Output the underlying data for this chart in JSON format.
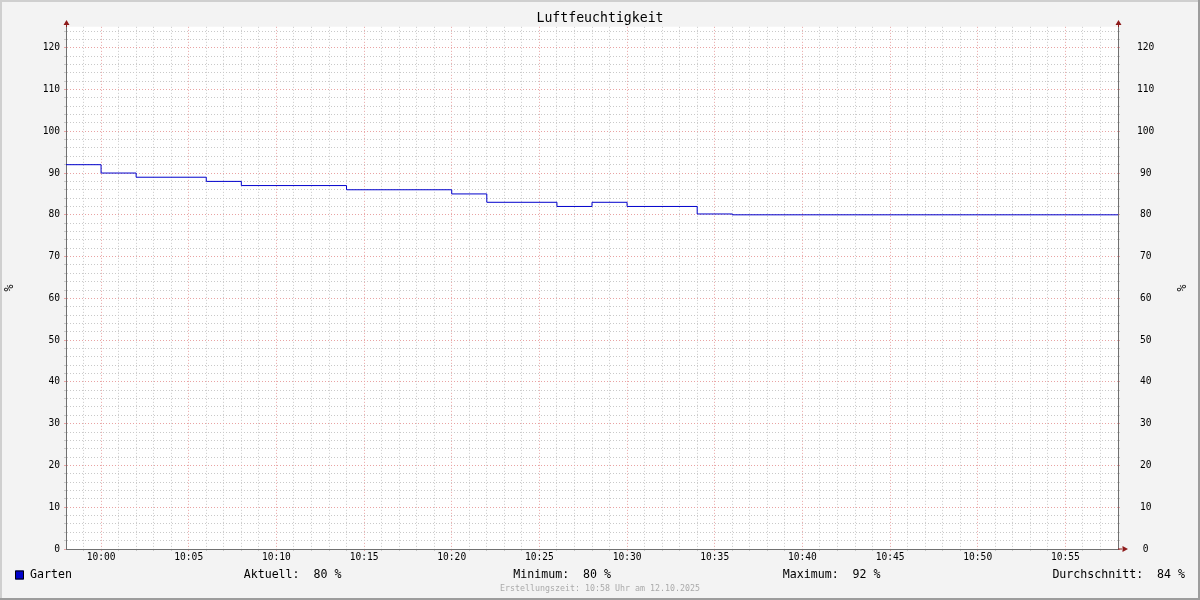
{
  "chart_data": {
    "type": "step",
    "title": "Luftfeuchtigkeit",
    "ylabel": "%",
    "y2label": "%",
    "x": [
      9.96667,
      10,
      10.03333,
      10.1,
      10.13333,
      10.23333,
      10.33333,
      10.36667,
      10.43333,
      10.46667,
      10.5,
      10.56667,
      10.6,
      10.96667
    ],
    "series": [
      {
        "name": "Garten",
        "color": "#0000cc",
        "values": [
          92,
          90,
          89,
          88,
          87,
          86,
          85,
          83,
          82,
          83,
          82,
          80.2,
          80,
          80
        ]
      }
    ],
    "xlim": [
      9.96667,
      10.96667
    ],
    "xticks": [
      {
        "value": 9.98333,
        "label": null
      },
      {
        "value": 10,
        "label": "10:00"
      },
      {
        "value": 10.01667,
        "label": null
      },
      {
        "value": 10.03333,
        "label": null
      },
      {
        "value": 10.05,
        "label": null
      },
      {
        "value": 10.06667,
        "label": null
      },
      {
        "value": 10.08333,
        "label": "10:05"
      },
      {
        "value": 10.1,
        "label": null
      },
      {
        "value": 10.11667,
        "label": null
      },
      {
        "value": 10.13333,
        "label": null
      },
      {
        "value": 10.15,
        "label": null
      },
      {
        "value": 10.16667,
        "label": "10:10"
      },
      {
        "value": 10.18333,
        "label": null
      },
      {
        "value": 10.2,
        "label": null
      },
      {
        "value": 10.21667,
        "label": null
      },
      {
        "value": 10.23333,
        "label": null
      },
      {
        "value": 10.25,
        "label": "10:15"
      },
      {
        "value": 10.26667,
        "label": null
      },
      {
        "value": 10.28333,
        "label": null
      },
      {
        "value": 10.3,
        "label": null
      },
      {
        "value": 10.31667,
        "label": null
      },
      {
        "value": 10.33333,
        "label": "10:20"
      },
      {
        "value": 10.35,
        "label": null
      },
      {
        "value": 10.36667,
        "label": null
      },
      {
        "value": 10.38333,
        "label": null
      },
      {
        "value": 10.4,
        "label": null
      },
      {
        "value": 10.41667,
        "label": "10:25"
      },
      {
        "value": 10.43333,
        "label": null
      },
      {
        "value": 10.45,
        "label": null
      },
      {
        "value": 10.46667,
        "label": null
      },
      {
        "value": 10.48333,
        "label": null
      },
      {
        "value": 10.5,
        "label": "10:30"
      },
      {
        "value": 10.51667,
        "label": null
      },
      {
        "value": 10.53333,
        "label": null
      },
      {
        "value": 10.55,
        "label": null
      },
      {
        "value": 10.56667,
        "label": null
      },
      {
        "value": 10.58333,
        "label": "10:35"
      },
      {
        "value": 10.6,
        "label": null
      },
      {
        "value": 10.61667,
        "label": null
      },
      {
        "value": 10.63333,
        "label": null
      },
      {
        "value": 10.65,
        "label": null
      },
      {
        "value": 10.66667,
        "label": "10:40"
      },
      {
        "value": 10.68333,
        "label": null
      },
      {
        "value": 10.7,
        "label": null
      },
      {
        "value": 10.71667,
        "label": null
      },
      {
        "value": 10.73333,
        "label": null
      },
      {
        "value": 10.75,
        "label": "10:45"
      },
      {
        "value": 10.76667,
        "label": null
      },
      {
        "value": 10.78333,
        "label": null
      },
      {
        "value": 10.8,
        "label": null
      },
      {
        "value": 10.81667,
        "label": null
      },
      {
        "value": 10.83333,
        "label": "10:50"
      },
      {
        "value": 10.85,
        "label": null
      },
      {
        "value": 10.86667,
        "label": null
      },
      {
        "value": 10.88333,
        "label": null
      },
      {
        "value": 10.9,
        "label": null
      },
      {
        "value": 10.91667,
        "label": "10:55"
      },
      {
        "value": 10.93333,
        "label": null
      },
      {
        "value": 10.95,
        "label": null
      }
    ],
    "ylim": [
      0,
      125
    ],
    "yticks": [
      0,
      {
        "value": 2,
        "label": null
      },
      {
        "value": 4,
        "label": null
      },
      {
        "value": 6,
        "label": null
      },
      {
        "value": 8,
        "label": null
      },
      10,
      {
        "value": 12,
        "label": null
      },
      {
        "value": 14,
        "label": null
      },
      {
        "value": 16,
        "label": null
      },
      {
        "value": 18,
        "label": null
      },
      20,
      {
        "value": 22,
        "label": null
      },
      {
        "value": 24,
        "label": null
      },
      {
        "value": 26,
        "label": null
      },
      {
        "value": 28,
        "label": null
      },
      30,
      {
        "value": 32,
        "label": null
      },
      {
        "value": 34,
        "label": null
      },
      {
        "value": 36,
        "label": null
      },
      {
        "value": 38,
        "label": null
      },
      40,
      {
        "value": 42,
        "label": null
      },
      {
        "value": 44,
        "label": null
      },
      {
        "value": 46,
        "label": null
      },
      {
        "value": 48,
        "label": null
      },
      50,
      {
        "value": 52,
        "label": null
      },
      {
        "value": 54,
        "label": null
      },
      {
        "value": 56,
        "label": null
      },
      {
        "value": 58,
        "label": null
      },
      60,
      {
        "value": 62,
        "label": null
      },
      {
        "value": 64,
        "label": null
      },
      {
        "value": 66,
        "label": null
      },
      {
        "value": 68,
        "label": null
      },
      70,
      {
        "value": 72,
        "label": null
      },
      {
        "value": 74,
        "label": null
      },
      {
        "value": 76,
        "label": null
      },
      {
        "value": 78,
        "label": null
      },
      80,
      {
        "value": 82,
        "label": null
      },
      {
        "value": 84,
        "label": null
      },
      {
        "value": 86,
        "label": null
      },
      {
        "value": 88,
        "label": null
      },
      90,
      {
        "value": 92,
        "label": null
      },
      {
        "value": 94,
        "label": null
      },
      {
        "value": 96,
        "label": null
      },
      {
        "value": 98,
        "label": null
      },
      100,
      {
        "value": 102,
        "label": null
      },
      {
        "value": 104,
        "label": null
      },
      {
        "value": 106,
        "label": null
      },
      {
        "value": 108,
        "label": null
      },
      110,
      {
        "value": 112,
        "label": null
      },
      {
        "value": 114,
        "label": null
      },
      {
        "value": 116,
        "label": null
      },
      {
        "value": 118,
        "label": null
      },
      120,
      {
        "value": 122,
        "label": null
      },
      {
        "value": 124,
        "label": null
      }
    ],
    "y2lim": [
      0,
      125
    ],
    "y2ticks": [
      0,
      {
        "value": 2,
        "label": null
      },
      {
        "value": 4,
        "label": null
      },
      {
        "value": 6,
        "label": null
      },
      {
        "value": 8,
        "label": null
      },
      10,
      {
        "value": 12,
        "label": null
      },
      {
        "value": 14,
        "label": null
      },
      {
        "value": 16,
        "label": null
      },
      {
        "value": 18,
        "label": null
      },
      20,
      {
        "value": 22,
        "label": null
      },
      {
        "value": 24,
        "label": null
      },
      {
        "value": 26,
        "label": null
      },
      {
        "value": 28,
        "label": null
      },
      30,
      {
        "value": 32,
        "label": null
      },
      {
        "value": 34,
        "label": null
      },
      {
        "value": 36,
        "label": null
      },
      {
        "value": 38,
        "label": null
      },
      40,
      {
        "value": 42,
        "label": null
      },
      {
        "value": 44,
        "label": null
      },
      {
        "value": 46,
        "label": null
      },
      {
        "value": 48,
        "label": null
      },
      50,
      {
        "value": 52,
        "label": null
      },
      {
        "value": 54,
        "label": null
      },
      {
        "value": 56,
        "label": null
      },
      {
        "value": 58,
        "label": null
      },
      60,
      {
        "value": 62,
        "label": null
      },
      {
        "value": 64,
        "label": null
      },
      {
        "value": 66,
        "label": null
      },
      {
        "value": 68,
        "label": null
      },
      70,
      {
        "value": 72,
        "label": null
      },
      {
        "value": 74,
        "label": null
      },
      {
        "value": 76,
        "label": null
      },
      {
        "value": 78,
        "label": null
      },
      80,
      {
        "value": 82,
        "label": null
      },
      {
        "value": 84,
        "label": null
      },
      {
        "value": 86,
        "label": null
      },
      {
        "value": 88,
        "label": null
      },
      90,
      {
        "value": 92,
        "label": null
      },
      {
        "value": 94,
        "label": null
      },
      {
        "value": 96,
        "label": null
      },
      {
        "value": 98,
        "label": null
      },
      100,
      {
        "value": 102,
        "label": null
      },
      {
        "value": 104,
        "label": null
      },
      {
        "value": 106,
        "label": null
      },
      {
        "value": 108,
        "label": null
      },
      110,
      {
        "value": 112,
        "label": null
      },
      {
        "value": 114,
        "label": null
      },
      {
        "value": 116,
        "label": null
      },
      {
        "value": 118,
        "label": null
      },
      120,
      {
        "value": 122,
        "label": null
      },
      {
        "value": 124,
        "label": null
      }
    ],
    "grid": true,
    "legend": "bottom left",
    "marker": "none",
    "annotations": [
      "Aktuell:  80 %",
      "Minimum:  80 %",
      "Maximum:  92 %",
      "Durchschnitt:  84 %",
      "Erstellungszeit: 10:58 Uhr am 12.10.2025"
    ]
  }
}
